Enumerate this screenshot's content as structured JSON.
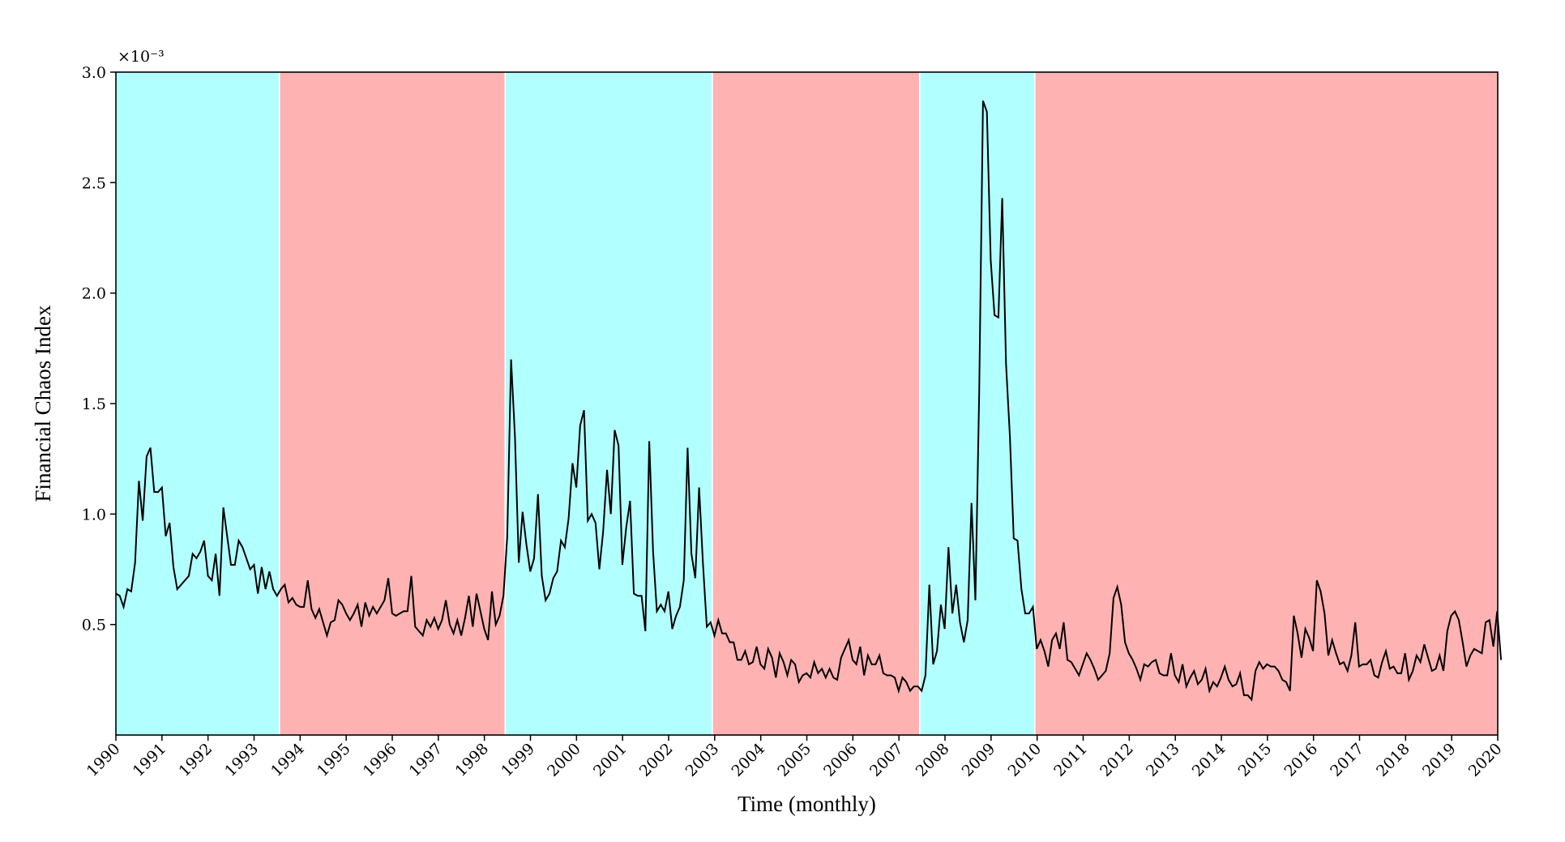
{
  "chart_data": {
    "type": "line",
    "xlabel": "Time (monthly)",
    "ylabel": "Financial Chaos Index",
    "y_exponent_label": "×10⁻³",
    "xlim": [
      1990,
      2020
    ],
    "ylim": [
      0,
      3.0
    ],
    "y_ticks": [
      0.5,
      1.0,
      1.5,
      2.0,
      2.5,
      3.0
    ],
    "y_tick_labels": [
      "0.5",
      "1.0",
      "1.5",
      "2.0",
      "2.5",
      "3.0"
    ],
    "x_tick_labels": [
      "1990",
      "1991",
      "1992",
      "1993",
      "1994",
      "1995",
      "1996",
      "1997",
      "1998",
      "1999",
      "2000",
      "2001",
      "2002",
      "2003",
      "2004",
      "2005",
      "2006",
      "2007",
      "2008",
      "2009",
      "2010",
      "2011",
      "2012",
      "2013",
      "2014",
      "2015",
      "2016",
      "2017",
      "2018",
      "2019",
      "2020"
    ],
    "grid": false,
    "line_color": "#000000",
    "regime_colors": {
      "cyan": "#b2ffff",
      "red": "#ffb2b2"
    },
    "regimes": [
      {
        "start": 1990.0,
        "end": 1993.55,
        "color": "cyan"
      },
      {
        "start": 1993.55,
        "end": 1998.45,
        "color": "red"
      },
      {
        "start": 1998.45,
        "end": 2002.95,
        "color": "cyan"
      },
      {
        "start": 2002.95,
        "end": 2007.45,
        "color": "red"
      },
      {
        "start": 2007.45,
        "end": 2009.95,
        "color": "cyan"
      },
      {
        "start": 2009.95,
        "end": 2020.0,
        "color": "red"
      }
    ],
    "series": [
      {
        "x_start": 1990,
        "step": 0.0833,
        "values": [
          0.64,
          0.63,
          0.58,
          0.66,
          0.65,
          0.78,
          1.15,
          0.97,
          1.26,
          1.3,
          1.1,
          1.1,
          1.12,
          0.9,
          0.96,
          0.76,
          0.66,
          0.68,
          0.7,
          0.72,
          0.82,
          0.8,
          0.83,
          0.88,
          0.72,
          0.7,
          0.82,
          0.63,
          1.03,
          0.9,
          0.77,
          0.77,
          0.88,
          0.85,
          0.8,
          0.75,
          0.77,
          0.64,
          0.76,
          0.66,
          0.74,
          0.66,
          0.63,
          0.66,
          0.68,
          0.6,
          0.62,
          0.59,
          0.58,
          0.58,
          0.7,
          0.57,
          0.53,
          0.57,
          0.51,
          0.45,
          0.51,
          0.52,
          0.61,
          0.59,
          0.55,
          0.52,
          0.55,
          0.59,
          0.49,
          0.6,
          0.54,
          0.58,
          0.55,
          0.58,
          0.61,
          0.71,
          0.55,
          0.54,
          0.55,
          0.56,
          0.56,
          0.72,
          0.49,
          0.47,
          0.45,
          0.52,
          0.49,
          0.53,
          0.48,
          0.52,
          0.61,
          0.5,
          0.46,
          0.52,
          0.45,
          0.53,
          0.63,
          0.49,
          0.64,
          0.56,
          0.48,
          0.43,
          0.65,
          0.5,
          0.54,
          0.63,
          0.9,
          1.7,
          1.35,
          0.78,
          1.01,
          0.86,
          0.74,
          0.8,
          1.09,
          0.72,
          0.61,
          0.64,
          0.71,
          0.74,
          0.88,
          0.85,
          0.98,
          1.23,
          1.12,
          1.4,
          1.47,
          0.97,
          1.0,
          0.96,
          0.75,
          0.92,
          1.2,
          1.0,
          1.38,
          1.31,
          0.77,
          0.94,
          1.06,
          0.64,
          0.63,
          0.63,
          0.47,
          1.33,
          0.83,
          0.56,
          0.59,
          0.56,
          0.65,
          0.48,
          0.54,
          0.58,
          0.7,
          1.3,
          0.82,
          0.71,
          1.12,
          0.78,
          0.49,
          0.51,
          0.45,
          0.52,
          0.46,
          0.46,
          0.42,
          0.42,
          0.34,
          0.34,
          0.38,
          0.32,
          0.33,
          0.4,
          0.32,
          0.3,
          0.39,
          0.35,
          0.26,
          0.37,
          0.33,
          0.27,
          0.34,
          0.32,
          0.24,
          0.27,
          0.28,
          0.26,
          0.33,
          0.28,
          0.3,
          0.26,
          0.3,
          0.26,
          0.25,
          0.35,
          0.39,
          0.43,
          0.34,
          0.32,
          0.4,
          0.27,
          0.36,
          0.32,
          0.32,
          0.36,
          0.28,
          0.27,
          0.27,
          0.26,
          0.2,
          0.26,
          0.24,
          0.2,
          0.22,
          0.22,
          0.2,
          0.27,
          0.68,
          0.32,
          0.38,
          0.59,
          0.48,
          0.85,
          0.55,
          0.68,
          0.51,
          0.42,
          0.52,
          1.05,
          0.61,
          1.55,
          2.87,
          2.82,
          2.15,
          1.9,
          1.89,
          2.43,
          1.68,
          1.35,
          0.89,
          0.88,
          0.66,
          0.55,
          0.55,
          0.58,
          0.39,
          0.43,
          0.38,
          0.31,
          0.43,
          0.46,
          0.39,
          0.51,
          0.34,
          0.33,
          0.3,
          0.27,
          0.32,
          0.37,
          0.34,
          0.3,
          0.25,
          0.27,
          0.29,
          0.37,
          0.62,
          0.67,
          0.59,
          0.42,
          0.37,
          0.34,
          0.3,
          0.25,
          0.32,
          0.31,
          0.33,
          0.34,
          0.28,
          0.27,
          0.27,
          0.37,
          0.27,
          0.24,
          0.32,
          0.22,
          0.26,
          0.29,
          0.23,
          0.25,
          0.3,
          0.2,
          0.24,
          0.22,
          0.26,
          0.31,
          0.25,
          0.22,
          0.23,
          0.28,
          0.18,
          0.18,
          0.16,
          0.29,
          0.33,
          0.3,
          0.32,
          0.31,
          0.31,
          0.29,
          0.25,
          0.24,
          0.2,
          0.54,
          0.46,
          0.35,
          0.48,
          0.44,
          0.38,
          0.7,
          0.65,
          0.55,
          0.36,
          0.43,
          0.37,
          0.32,
          0.33,
          0.29,
          0.36,
          0.51,
          0.31,
          0.32,
          0.32,
          0.34,
          0.27,
          0.26,
          0.33,
          0.38,
          0.3,
          0.31,
          0.28,
          0.28,
          0.37,
          0.25,
          0.29,
          0.36,
          0.33,
          0.41,
          0.35,
          0.29,
          0.3,
          0.36,
          0.29,
          0.47,
          0.54,
          0.56,
          0.52,
          0.42,
          0.31,
          0.36,
          0.39,
          0.38,
          0.37,
          0.51,
          0.52,
          0.4,
          0.56,
          0.34
        ]
      }
    ]
  }
}
